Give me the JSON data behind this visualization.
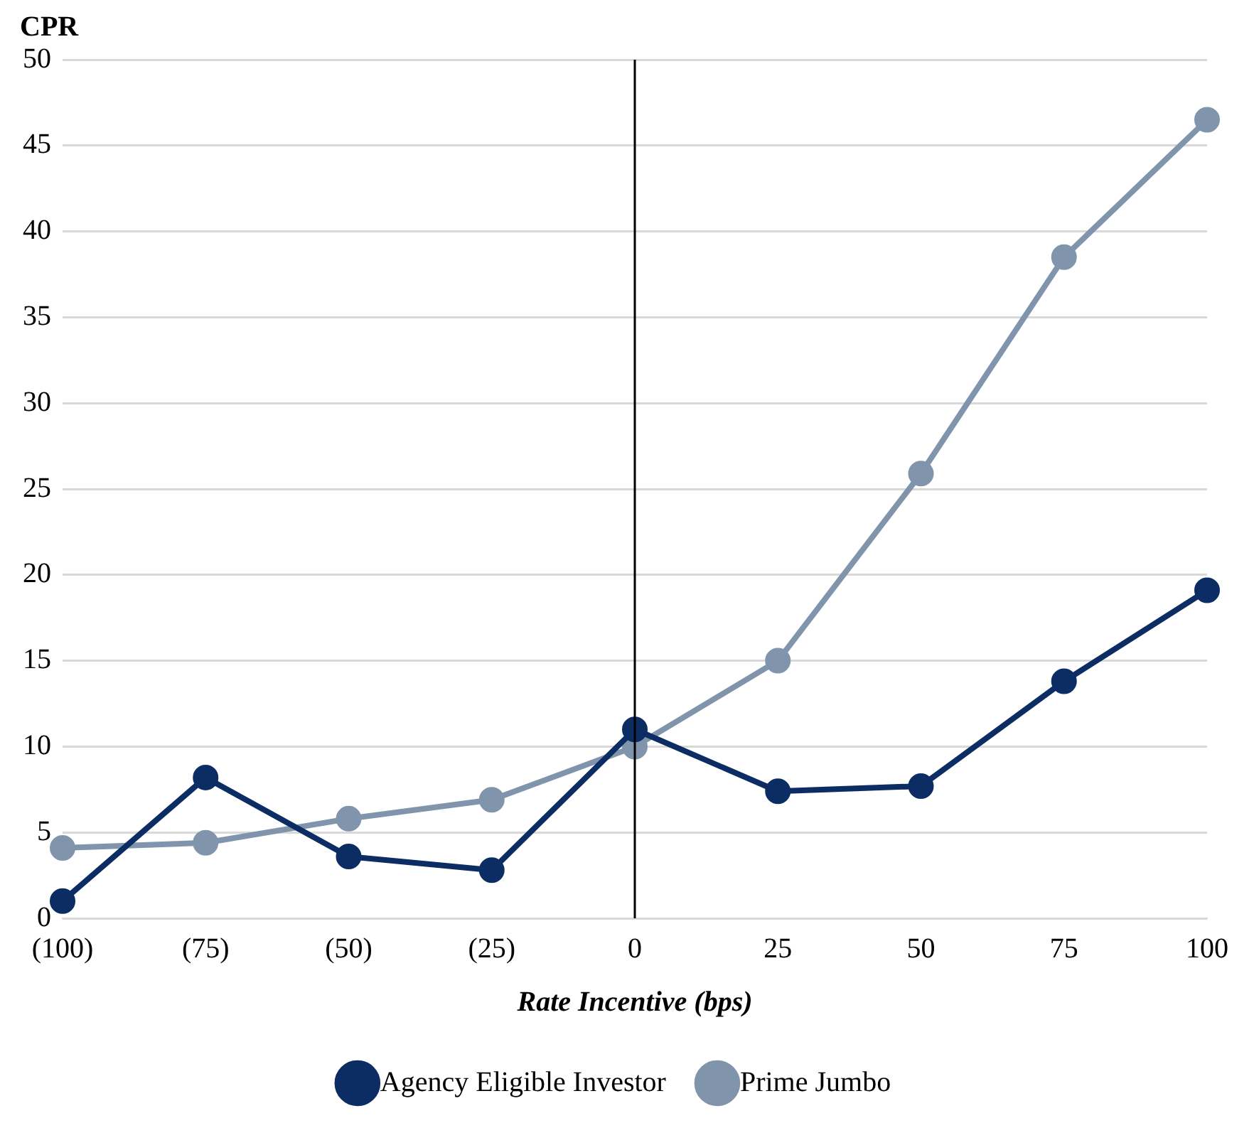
{
  "chart_data": {
    "type": "line",
    "ylabel": "CPR",
    "xlabel": "Rate Incentive (bps)",
    "categories": [
      "(100)",
      "(75)",
      "(50)",
      "(25)",
      "0",
      "25",
      "50",
      "75",
      "100"
    ],
    "series": [
      {
        "name": "Agency Eligible Investor",
        "color": "#0b2d63",
        "values": [
          1.0,
          8.2,
          3.6,
          2.8,
          11.0,
          7.4,
          7.7,
          13.8,
          19.1
        ]
      },
      {
        "name": "Prime Jumbo",
        "color": "#8094ab",
        "values": [
          4.1,
          4.4,
          5.8,
          6.9,
          10.0,
          15.0,
          25.9,
          38.5,
          46.5
        ]
      }
    ],
    "ylim": [
      0,
      50
    ],
    "yticks": [
      0,
      5,
      10,
      15,
      20,
      25,
      30,
      35,
      40,
      45,
      50
    ],
    "ref_lines": [
      {
        "axis": "x",
        "value": "0",
        "color": "#000000"
      }
    ],
    "grid": "y",
    "legend": "bottom",
    "marker": "circle",
    "line_style": "solid"
  }
}
